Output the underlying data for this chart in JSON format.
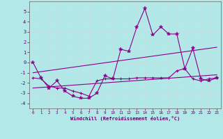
{
  "xlabel": "Windchill (Refroidissement éolien,°C)",
  "x": [
    0,
    1,
    2,
    3,
    4,
    5,
    6,
    7,
    8,
    9,
    10,
    11,
    12,
    13,
    14,
    15,
    16,
    17,
    18,
    19,
    20,
    21,
    22,
    23
  ],
  "line1": [
    0,
    -1.5,
    -2.5,
    -1.8,
    -2.8,
    -3.3,
    -3.5,
    -3.5,
    -3.0,
    -1.3,
    -1.6,
    1.3,
    1.1,
    3.5,
    5.3,
    2.7,
    3.5,
    2.8,
    2.8,
    -0.6,
    1.4,
    -1.6,
    -1.8,
    -1.5
  ],
  "line2": [
    -1.5,
    -1.6,
    -2.3,
    -2.5,
    -2.5,
    -2.8,
    -3.0,
    -3.3,
    -1.8,
    -1.6,
    -1.6,
    -1.6,
    -1.6,
    -1.5,
    -1.5,
    -1.5,
    -1.5,
    -1.5,
    -0.8,
    -0.6,
    -1.6,
    -1.8,
    -1.6,
    -1.5
  ],
  "line3_x": [
    0,
    23
  ],
  "line3_y": [
    -1.0,
    1.5
  ],
  "line4_x": [
    0,
    23
  ],
  "line4_y": [
    -2.5,
    -1.2
  ],
  "ylim": [
    -4.5,
    6.0
  ],
  "xlim": [
    -0.5,
    23.5
  ],
  "yticks": [
    -4,
    -3,
    -2,
    -1,
    0,
    1,
    2,
    3,
    4,
    5
  ],
  "xticks": [
    0,
    1,
    2,
    3,
    4,
    5,
    6,
    7,
    8,
    9,
    10,
    11,
    12,
    13,
    14,
    15,
    16,
    17,
    18,
    19,
    20,
    21,
    22,
    23
  ],
  "line_color": "#880088",
  "bg_color": "#b2e8e8",
  "grid_color": "#d0e8e8",
  "markersize": 3,
  "linewidth": 0.8,
  "tick_color": "#660066",
  "label_color": "#660066"
}
